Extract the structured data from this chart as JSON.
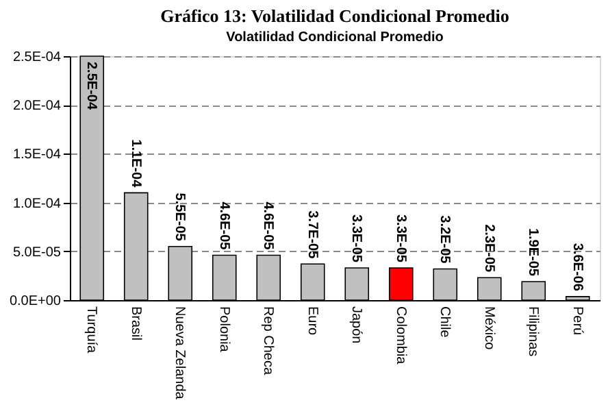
{
  "chart_data": {
    "type": "bar",
    "title": "Gráfico 13: Volatilidad Condicional Promedio",
    "subtitle": "Volatilidad Condicional Promedio",
    "categories": [
      "Turquía",
      "Brasil",
      "Nueva Zelanda",
      "Polonia",
      "Rep Checa",
      "Euro",
      "Japón",
      "Colombia",
      "Chile",
      "México",
      "Filipinas",
      "Perú"
    ],
    "values": [
      0.00025,
      0.00011,
      5.5e-05,
      4.6e-05,
      4.6e-05,
      3.7e-05,
      3.3e-05,
      3.3e-05,
      3.2e-05,
      2.3e-05,
      1.9e-05,
      3.6e-06
    ],
    "value_labels": [
      "2.5E-04",
      "1.1E-04",
      "5.5E-05",
      "4.6E-05",
      "4.6E-05",
      "3.7E-05",
      "3.3E-05",
      "3.3E-05",
      "3.2E-05",
      "2.3E-05",
      "1.9E-05",
      "3.6E-06"
    ],
    "colors": [
      "#c0c0c0",
      "#c0c0c0",
      "#c0c0c0",
      "#c0c0c0",
      "#c0c0c0",
      "#c0c0c0",
      "#c0c0c0",
      "#ff0000",
      "#c0c0c0",
      "#c0c0c0",
      "#c0c0c0",
      "#c0c0c0"
    ],
    "ylim": [
      0,
      0.00025
    ],
    "yticks": [
      {
        "value": 0,
        "label": "0.0E+00"
      },
      {
        "value": 5e-05,
        "label": "5.0E-05"
      },
      {
        "value": 0.0001,
        "label": "1.0E-04"
      },
      {
        "value": 0.00015,
        "label": "1.5E-04"
      },
      {
        "value": 0.0002,
        "label": "2.0E-04"
      },
      {
        "value": 0.00025,
        "label": "2.5E-04"
      }
    ],
    "grid": "y"
  }
}
